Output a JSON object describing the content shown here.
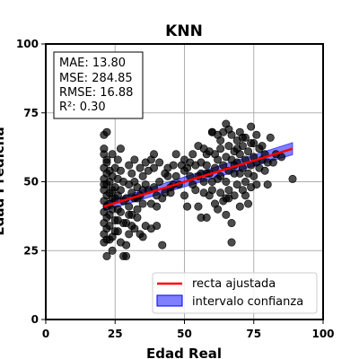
{
  "chart_data": {
    "type": "scatter",
    "title": "KNN",
    "xlabel": "Edad Real",
    "ylabel": "Edad Predicha",
    "xlim": [
      0,
      100
    ],
    "ylim": [
      0,
      100
    ],
    "xticks": [
      "0",
      "25",
      "50",
      "75",
      "100"
    ],
    "yticks": [
      "0",
      "25",
      "50",
      "75",
      "100"
    ],
    "grid": true,
    "legend_position": "bottom-right",
    "colors": {
      "points": "#000000",
      "fit_line": "#ff0000",
      "confidence_band": "#0000ff"
    },
    "metrics": [
      "MAE: 13.80",
      "MSE: 284.85",
      "RMSE: 16.88",
      "R²: 0.30"
    ],
    "legend": [
      {
        "label": "recta ajustada",
        "kind": "line",
        "color": "#ff0000"
      },
      {
        "label": "intervalo confianza",
        "kind": "band",
        "color": "#0000ff"
      }
    ],
    "fit_line": {
      "x": [
        21,
        89
      ],
      "y": [
        41.0,
        62.0
      ]
    },
    "confidence_band": {
      "x": [
        21,
        89
      ],
      "lower": [
        39.5,
        59.8
      ],
      "upper": [
        42.5,
        64.2
      ]
    },
    "points": [
      [
        21,
        67
      ],
      [
        22,
        68
      ],
      [
        21,
        62
      ],
      [
        21,
        60
      ],
      [
        22,
        57
      ],
      [
        21,
        55
      ],
      [
        22,
        53
      ],
      [
        21,
        51
      ],
      [
        22,
        49
      ],
      [
        21,
        47
      ],
      [
        22,
        45
      ],
      [
        21,
        43
      ],
      [
        22,
        41
      ],
      [
        21,
        39
      ],
      [
        22,
        37
      ],
      [
        21,
        35
      ],
      [
        22,
        33
      ],
      [
        21,
        31
      ],
      [
        22,
        29
      ],
      [
        21,
        28
      ],
      [
        23,
        50
      ],
      [
        23,
        46
      ],
      [
        23,
        42
      ],
      [
        23,
        38
      ],
      [
        23,
        34
      ],
      [
        24,
        52
      ],
      [
        24,
        47
      ],
      [
        24,
        44
      ],
      [
        24,
        40
      ],
      [
        24,
        30
      ],
      [
        24,
        25
      ],
      [
        22,
        23
      ],
      [
        25,
        55
      ],
      [
        25,
        48
      ],
      [
        25,
        36
      ],
      [
        26,
        58
      ],
      [
        26,
        51
      ],
      [
        26,
        45
      ],
      [
        26,
        32
      ],
      [
        27,
        54
      ],
      [
        27,
        47
      ],
      [
        27,
        39
      ],
      [
        27,
        28
      ],
      [
        28,
        23
      ],
      [
        29,
        23
      ],
      [
        28,
        50
      ],
      [
        29,
        44
      ],
      [
        29,
        35
      ],
      [
        30,
        56
      ],
      [
        30,
        49
      ],
      [
        30,
        41
      ],
      [
        30,
        31
      ],
      [
        31,
        53
      ],
      [
        31,
        46
      ],
      [
        31,
        38
      ],
      [
        32,
        58
      ],
      [
        32,
        44
      ],
      [
        32,
        33
      ],
      [
        33,
        48
      ],
      [
        33,
        40
      ],
      [
        34,
        55
      ],
      [
        34,
        45
      ],
      [
        35,
        52
      ],
      [
        35,
        42
      ],
      [
        35,
        30
      ],
      [
        36,
        49
      ],
      [
        36,
        34
      ],
      [
        37,
        47
      ],
      [
        38,
        33
      ],
      [
        38,
        58
      ],
      [
        39,
        48
      ],
      [
        39,
        60
      ],
      [
        40,
        34
      ],
      [
        40,
        41
      ],
      [
        41,
        57
      ],
      [
        42,
        44
      ],
      [
        42,
        27
      ],
      [
        43,
        46
      ],
      [
        44,
        55
      ],
      [
        45,
        46
      ],
      [
        46,
        56
      ],
      [
        47,
        60
      ],
      [
        48,
        49
      ],
      [
        49,
        56
      ],
      [
        50,
        54
      ],
      [
        50,
        45
      ],
      [
        51,
        41
      ],
      [
        52,
        57
      ],
      [
        53,
        60
      ],
      [
        54,
        47
      ],
      [
        55,
        52
      ],
      [
        55,
        63
      ],
      [
        56,
        57
      ],
      [
        56,
        37
      ],
      [
        57,
        50
      ],
      [
        57,
        46
      ],
      [
        58,
        56
      ],
      [
        58,
        37
      ],
      [
        59,
        61
      ],
      [
        59,
        53
      ],
      [
        60,
        47
      ],
      [
        60,
        68
      ],
      [
        61,
        55
      ],
      [
        61,
        42
      ],
      [
        62,
        58
      ],
      [
        62,
        51
      ],
      [
        63,
        62
      ],
      [
        63,
        46
      ],
      [
        64,
        68
      ],
      [
        64,
        56
      ],
      [
        64,
        43
      ],
      [
        65,
        71
      ],
      [
        65,
        59
      ],
      [
        65,
        50
      ],
      [
        65,
        38
      ],
      [
        66,
        63
      ],
      [
        66,
        54
      ],
      [
        66,
        47
      ],
      [
        67,
        67
      ],
      [
        67,
        58
      ],
      [
        67,
        28
      ],
      [
        68,
        61
      ],
      [
        68,
        53
      ],
      [
        68,
        45
      ],
      [
        69,
        65
      ],
      [
        69,
        57
      ],
      [
        69,
        49
      ],
      [
        70,
        68
      ],
      [
        70,
        60
      ],
      [
        70,
        41
      ],
      [
        71,
        63
      ],
      [
        71,
        55
      ],
      [
        71,
        47
      ],
      [
        72,
        66
      ],
      [
        72,
        58
      ],
      [
        72,
        50
      ],
      [
        73,
        61
      ],
      [
        73,
        53
      ],
      [
        74,
        70
      ],
      [
        74,
        56
      ],
      [
        74,
        48
      ],
      [
        75,
        64
      ],
      [
        75,
        59
      ],
      [
        76,
        57
      ],
      [
        76,
        49
      ],
      [
        77,
        62
      ],
      [
        77,
        55
      ],
      [
        78,
        58
      ],
      [
        79,
        60
      ],
      [
        80,
        57
      ],
      [
        80,
        49
      ],
      [
        81,
        66
      ],
      [
        83,
        60
      ],
      [
        85,
        59
      ],
      [
        89,
        51
      ],
      [
        62,
        67
      ],
      [
        60,
        68
      ],
      [
        58,
        53
      ],
      [
        52,
        52
      ],
      [
        46,
        49
      ],
      [
        44,
        52
      ],
      [
        40,
        45
      ],
      [
        36,
        57
      ],
      [
        33,
        37
      ],
      [
        29,
        27
      ],
      [
        26,
        40
      ],
      [
        24,
        60
      ],
      [
        23,
        54
      ],
      [
        23,
        29
      ],
      [
        28,
        43
      ],
      [
        31,
        34
      ],
      [
        34,
        31
      ],
      [
        37,
        54
      ],
      [
        41,
        50
      ],
      [
        47,
        52
      ],
      [
        53,
        49
      ],
      [
        57,
        62
      ],
      [
        61,
        60
      ],
      [
        63,
        52
      ],
      [
        66,
        44
      ],
      [
        68,
        56
      ],
      [
        70,
        53
      ],
      [
        72,
        45
      ],
      [
        75,
        52
      ],
      [
        78,
        63
      ],
      [
        73,
        42
      ],
      [
        67,
        35
      ],
      [
        65,
        44
      ],
      [
        62,
        40
      ],
      [
        59,
        45
      ],
      [
        55,
        41
      ],
      [
        50,
        58
      ],
      [
        43,
        53
      ],
      [
        38,
        42
      ],
      [
        35,
        47
      ],
      [
        32,
        50
      ],
      [
        30,
        38
      ],
      [
        28,
        35
      ],
      [
        25,
        32
      ],
      [
        27,
        62
      ],
      [
        33,
        44
      ],
      [
        39,
        55
      ],
      [
        45,
        48
      ],
      [
        51,
        55
      ],
      [
        54,
        56
      ],
      [
        56,
        53
      ],
      [
        58,
        60
      ],
      [
        60,
        50
      ],
      [
        63,
        65
      ],
      [
        66,
        69
      ],
      [
        69,
        62
      ],
      [
        71,
        66
      ],
      [
        74,
        64
      ],
      [
        76,
        67
      ],
      [
        79,
        54
      ],
      [
        82,
        57
      ],
      [
        25,
        44
      ],
      [
        26,
        36
      ],
      [
        22,
        58
      ],
      [
        21,
        49
      ]
    ]
  }
}
